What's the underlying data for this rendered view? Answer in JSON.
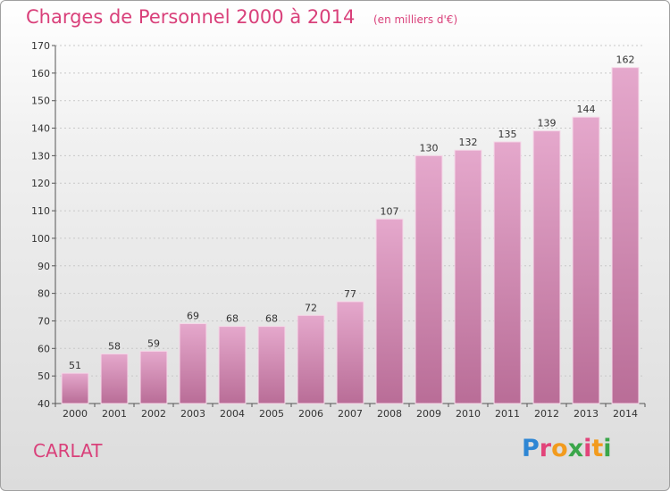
{
  "title": "Charges de Personnel 2000 à 2014",
  "subtitle": "(en milliers d'€)",
  "place": "CARLAT",
  "brand": "Proxiti",
  "colors": {
    "bar_top": "#e5a8cc",
    "bar_bottom": "#b96d97",
    "accent": "#d9407a"
  },
  "chart_data": {
    "type": "bar",
    "categories": [
      "2000",
      "2001",
      "2002",
      "2003",
      "2004",
      "2005",
      "2006",
      "2007",
      "2008",
      "2009",
      "2010",
      "2011",
      "2012",
      "2013",
      "2014"
    ],
    "values": [
      51,
      58,
      59,
      69,
      68,
      68,
      72,
      77,
      107,
      130,
      132,
      135,
      139,
      144,
      162
    ],
    "ylim": [
      40,
      170
    ],
    "yticks": [
      40,
      50,
      60,
      70,
      80,
      90,
      100,
      110,
      120,
      130,
      140,
      150,
      160,
      170
    ],
    "grid": true,
    "xlabel": "",
    "ylabel": ""
  }
}
